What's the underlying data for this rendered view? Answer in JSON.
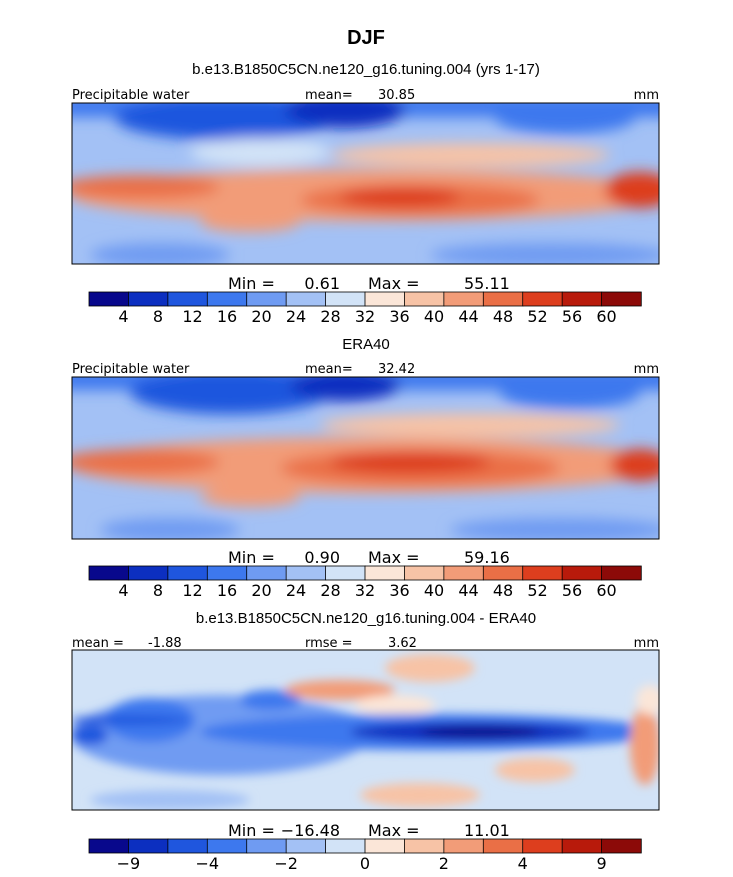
{
  "figure": {
    "title": "DJF",
    "palette_abs": [
      "#08088c",
      "#0c2fc0",
      "#1f56de",
      "#3d78ee",
      "#6f9bf2",
      "#a3c1f5",
      "#d2e3f7",
      "#fbe6d8",
      "#f7c3a6",
      "#f29c78",
      "#ea6f46",
      "#dd3e1e",
      "#b81a0b",
      "#8c0a08"
    ],
    "palette_diff": [
      "#08088c",
      "#0c2fc0",
      "#1f56de",
      "#3d78ee",
      "#6f9bf2",
      "#a3c1f5",
      "#d2e3f7",
      "#fbe6d8",
      "#f7c3a6",
      "#f29c78",
      "#ea6f46",
      "#dd3e1e",
      "#b81a0b",
      "#8c0a08"
    ]
  },
  "chart_data": [
    {
      "type": "heatmap",
      "title": "b.e13.B1850C5CN.ne120_g16.tuning.004 (yrs 1-17)",
      "variable": "Precipitable water",
      "mean_label": "mean=",
      "mean_value": "30.85",
      "units": "mm",
      "min_label": "Min =",
      "min_value": "0.61",
      "max_label": "Max =",
      "max_value": "55.11",
      "colorbar_ticks": [
        "4",
        "8",
        "12",
        "16",
        "20",
        "24",
        "28",
        "32",
        "36",
        "40",
        "44",
        "48",
        "52",
        "56",
        "60"
      ],
      "levels": [
        4,
        8,
        12,
        16,
        20,
        24,
        28,
        32,
        36,
        40,
        44,
        48,
        52,
        56,
        60
      ],
      "range": [
        0,
        64
      ]
    },
    {
      "type": "heatmap",
      "title": "ERA40",
      "variable": "Precipitable water",
      "mean_label": "mean=",
      "mean_value": "32.42",
      "units": "mm",
      "min_label": "Min =",
      "min_value": "0.90",
      "max_label": "Max =",
      "max_value": "59.16",
      "colorbar_ticks": [
        "4",
        "8",
        "12",
        "16",
        "20",
        "24",
        "28",
        "32",
        "36",
        "40",
        "44",
        "48",
        "52",
        "56",
        "60"
      ],
      "levels": [
        4,
        8,
        12,
        16,
        20,
        24,
        28,
        32,
        36,
        40,
        44,
        48,
        52,
        56,
        60
      ],
      "range": [
        0,
        64
      ]
    },
    {
      "type": "heatmap",
      "title": "b.e13.B1850C5CN.ne120_g16.tuning.004 - ERA40",
      "variable": "",
      "mean_label": "mean =",
      "mean_value": "-1.88",
      "rmse_label": "rmse =",
      "rmse_value": "3.62",
      "units": "mm",
      "min_label": "Min =",
      "min_value": "−16.48",
      "max_label": "Max =",
      "max_value": "11.01",
      "colorbar_ticks": [
        "−9",
        "",
        "−4",
        "",
        "−2",
        "",
        "0",
        "",
        "2",
        "",
        "4",
        "",
        "9"
      ],
      "levels": [
        -12,
        -9,
        -6,
        -4,
        -3,
        -2,
        -1,
        0,
        1,
        2,
        3,
        4,
        6,
        9,
        12
      ],
      "range": [
        -12,
        12
      ]
    }
  ]
}
